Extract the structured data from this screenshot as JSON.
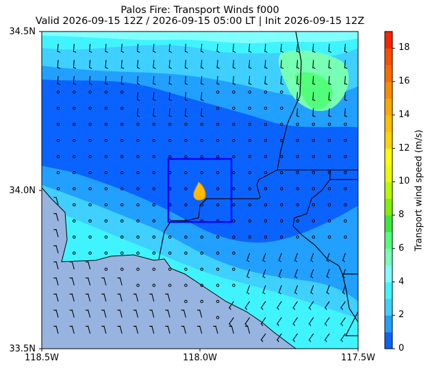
{
  "title_line1": "Palos Fire: Transport Winds f000",
  "title_line2": "Valid 2026-09-15 12Z / 2026-09-15 05:00 LT | Init 2026-09-15 12Z",
  "axes": {
    "lat_ticks": [
      "34.5N",
      "34.0N",
      "33.5N"
    ],
    "lon_ticks": [
      "118.5W",
      "118.0W",
      "117.5W"
    ],
    "lat_range": [
      33.5,
      34.5
    ],
    "lon_range": [
      -118.5,
      -117.5
    ]
  },
  "colorbar": {
    "label": "Transport wind speed (m/s)",
    "ticks": [
      "0",
      "2",
      "4",
      "6",
      "8",
      "10",
      "12",
      "14",
      "16",
      "18"
    ],
    "range": [
      0,
      19
    ],
    "step": 1,
    "colors": [
      "#0b63ff",
      "#21a0ff",
      "#3fd0ff",
      "#40f4ff",
      "#80ffff",
      "#77ffb4",
      "#51ff7a",
      "#3de83d",
      "#7ff000",
      "#b9f800",
      "#e6ff00",
      "#ffff00",
      "#ffd400",
      "#ffbf00",
      "#ffa800",
      "#ff8a00",
      "#ff6a00",
      "#ff4c00",
      "#ff2200"
    ]
  },
  "map": {
    "ocean_color": "#96b4df",
    "fire_marker": {
      "lat": 33.99,
      "lon": -118.0,
      "color": "#ffbb00",
      "name": "Palos Fire"
    },
    "domain_box": {
      "lat": [
        33.9,
        34.1
      ],
      "lon": [
        -118.1,
        -117.9
      ],
      "color": "#0000ff"
    }
  }
}
